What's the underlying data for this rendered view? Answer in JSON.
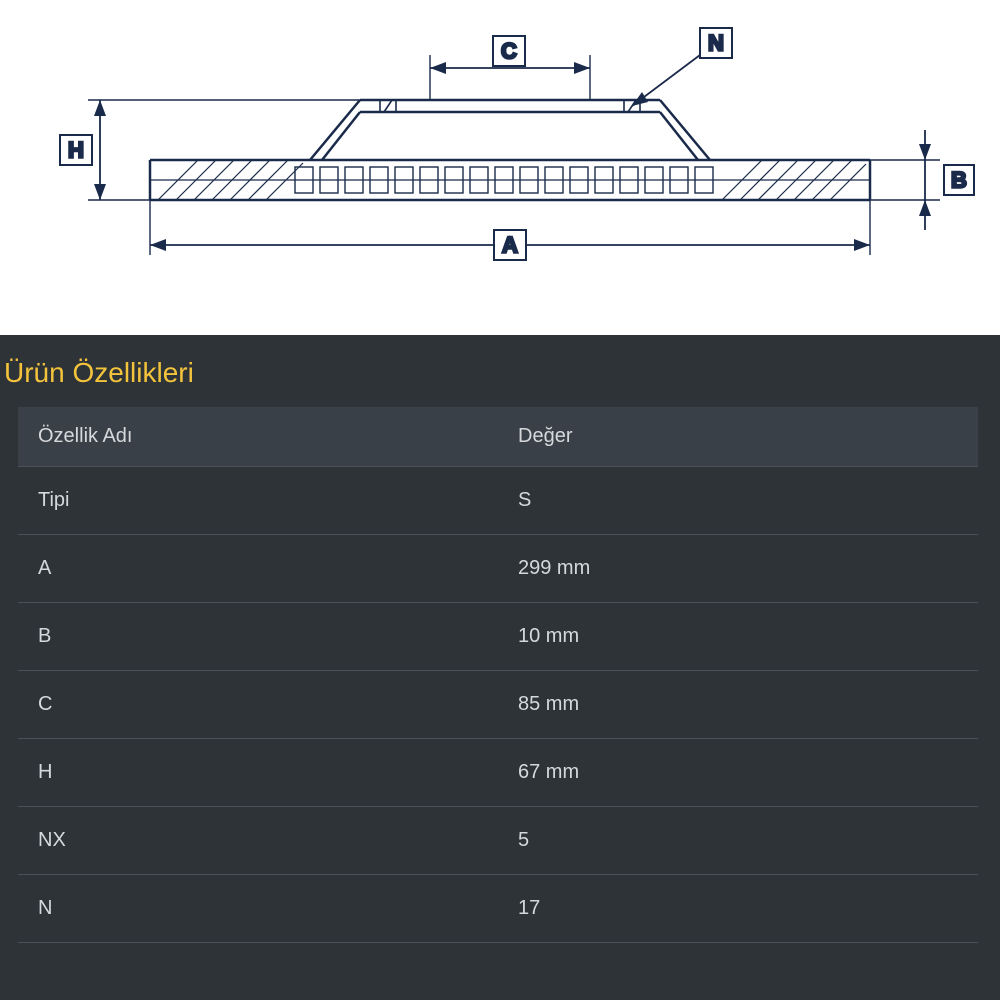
{
  "diagram": {
    "stroke_color": "#1a2a4a",
    "label_text_color": "#1a2a4a",
    "label_box_stroke": "#1a2a4a",
    "dim_labels": {
      "A": "A",
      "B": "B",
      "C": "C",
      "H": "H",
      "N": "N"
    }
  },
  "specs": {
    "title": "Ürün Özellikleri",
    "title_color": "#f3c33c",
    "panel_bg": "#2e3338",
    "header_bg": "#3a4047",
    "row_border_color": "#4a5057",
    "text_color": "#d6d9dc",
    "header_text_color": "#d6d9dc",
    "columns": [
      "Özellik Adı",
      "Değer"
    ],
    "rows": [
      [
        "Tipi",
        "S"
      ],
      [
        "A",
        "299 mm"
      ],
      [
        "B",
        "10 mm"
      ],
      [
        "C",
        "85 mm"
      ],
      [
        "H",
        "67 mm"
      ],
      [
        "NX",
        "5"
      ],
      [
        "N",
        "17"
      ]
    ]
  }
}
